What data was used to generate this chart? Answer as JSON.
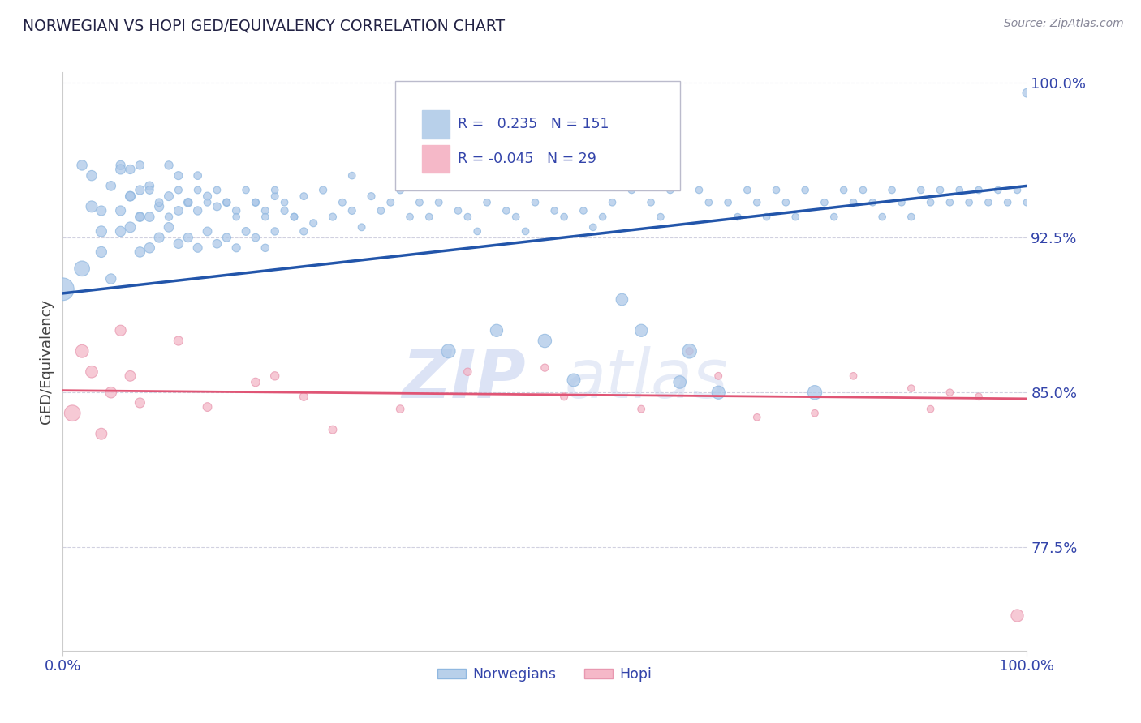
{
  "title": "NORWEGIAN VS HOPI GED/EQUIVALENCY CORRELATION CHART",
  "source_text": "Source: ZipAtlas.com",
  "ylabel": "GED/Equivalency",
  "r_norwegian": 0.235,
  "n_norwegian": 151,
  "r_hopi": -0.045,
  "n_hopi": 29,
  "xlim": [
    0.0,
    1.0
  ],
  "ylim": [
    0.725,
    1.005
  ],
  "yticks": [
    0.775,
    0.85,
    0.925,
    1.0
  ],
  "ytick_labels": [
    "77.5%",
    "85.0%",
    "92.5%",
    "100.0%"
  ],
  "xtick_labels": [
    "0.0%",
    "100.0%"
  ],
  "xticks": [
    0.0,
    1.0
  ],
  "norwegian_color": "#adc8e8",
  "norwegian_edge_color": "#90b8e0",
  "hopi_color": "#f4b8c8",
  "hopi_edge_color": "#e898b0",
  "norwegian_line_color": "#2255aa",
  "hopi_line_color": "#e05575",
  "legend_box_color_norwegian": "#b8d0ea",
  "legend_box_color_hopi": "#f5b8c8",
  "title_color": "#222244",
  "axis_label_color": "#334499",
  "tick_label_color": "#3344aa",
  "grid_color": "#ccccdd",
  "watermark_text": "ZIPatlas",
  "watermark_color": "#d0ddf0",
  "background_color": "#ffffff",
  "nor_line_start_y": 0.898,
  "nor_line_end_y": 0.95,
  "hop_line_start_y": 0.851,
  "hop_line_end_y": 0.847,
  "norwegian_x": [
    0.02,
    0.02,
    0.03,
    0.03,
    0.04,
    0.04,
    0.05,
    0.05,
    0.06,
    0.06,
    0.06,
    0.07,
    0.07,
    0.07,
    0.08,
    0.08,
    0.08,
    0.08,
    0.09,
    0.09,
    0.09,
    0.1,
    0.1,
    0.11,
    0.11,
    0.11,
    0.12,
    0.12,
    0.12,
    0.13,
    0.13,
    0.14,
    0.14,
    0.14,
    0.15,
    0.15,
    0.16,
    0.16,
    0.17,
    0.17,
    0.18,
    0.18,
    0.19,
    0.2,
    0.2,
    0.21,
    0.21,
    0.22,
    0.22,
    0.23,
    0.24,
    0.25,
    0.25,
    0.26,
    0.27,
    0.28,
    0.29,
    0.3,
    0.3,
    0.31,
    0.32,
    0.33,
    0.34,
    0.35,
    0.36,
    0.37,
    0.38,
    0.39,
    0.4,
    0.41,
    0.42,
    0.43,
    0.44,
    0.45,
    0.46,
    0.47,
    0.48,
    0.49,
    0.5,
    0.51,
    0.52,
    0.53,
    0.54,
    0.55,
    0.56,
    0.57,
    0.58,
    0.59,
    0.6,
    0.61,
    0.62,
    0.63,
    0.64,
    0.65,
    0.66,
    0.67,
    0.68,
    0.69,
    0.7,
    0.71,
    0.72,
    0.73,
    0.74,
    0.75,
    0.76,
    0.77,
    0.78,
    0.79,
    0.8,
    0.81,
    0.82,
    0.83,
    0.84,
    0.85,
    0.86,
    0.87,
    0.88,
    0.89,
    0.9,
    0.91,
    0.92,
    0.93,
    0.94,
    0.95,
    0.96,
    0.97,
    0.98,
    0.99,
    1.0,
    1.0,
    0.04,
    0.06,
    0.07,
    0.08,
    0.09,
    0.1,
    0.11,
    0.12,
    0.13,
    0.14,
    0.15,
    0.16,
    0.17,
    0.18,
    0.19,
    0.2,
    0.21,
    0.22,
    0.23,
    0.24,
    0.0
  ],
  "norwegian_y": [
    0.91,
    0.96,
    0.94,
    0.955,
    0.918,
    0.938,
    0.905,
    0.95,
    0.928,
    0.938,
    0.96,
    0.93,
    0.945,
    0.958,
    0.918,
    0.935,
    0.948,
    0.96,
    0.92,
    0.935,
    0.95,
    0.925,
    0.94,
    0.93,
    0.945,
    0.96,
    0.922,
    0.938,
    0.955,
    0.925,
    0.942,
    0.92,
    0.938,
    0.955,
    0.928,
    0.945,
    0.922,
    0.94,
    0.925,
    0.942,
    0.92,
    0.938,
    0.928,
    0.925,
    0.942,
    0.92,
    0.938,
    0.928,
    0.945,
    0.938,
    0.935,
    0.928,
    0.945,
    0.932,
    0.948,
    0.935,
    0.942,
    0.938,
    0.955,
    0.93,
    0.945,
    0.938,
    0.942,
    0.948,
    0.935,
    0.942,
    0.935,
    0.942,
    0.87,
    0.938,
    0.935,
    0.928,
    0.942,
    0.88,
    0.938,
    0.935,
    0.928,
    0.942,
    0.875,
    0.938,
    0.935,
    0.856,
    0.938,
    0.93,
    0.935,
    0.942,
    0.895,
    0.948,
    0.88,
    0.942,
    0.935,
    0.948,
    0.855,
    0.87,
    0.948,
    0.942,
    0.85,
    0.942,
    0.935,
    0.948,
    0.942,
    0.935,
    0.948,
    0.942,
    0.935,
    0.948,
    0.85,
    0.942,
    0.935,
    0.948,
    0.942,
    0.948,
    0.942,
    0.935,
    0.948,
    0.942,
    0.935,
    0.948,
    0.942,
    0.948,
    0.942,
    0.948,
    0.942,
    0.948,
    0.942,
    0.948,
    0.942,
    0.948,
    0.942,
    0.995,
    0.928,
    0.958,
    0.945,
    0.935,
    0.948,
    0.942,
    0.935,
    0.948,
    0.942,
    0.948,
    0.942,
    0.948,
    0.942,
    0.935,
    0.948,
    0.942,
    0.935,
    0.948,
    0.942,
    0.935,
    0.9
  ],
  "hopi_x": [
    0.01,
    0.02,
    0.03,
    0.04,
    0.05,
    0.06,
    0.07,
    0.08,
    0.12,
    0.15,
    0.2,
    0.22,
    0.25,
    0.28,
    0.35,
    0.42,
    0.5,
    0.52,
    0.6,
    0.65,
    0.68,
    0.72,
    0.78,
    0.82,
    0.88,
    0.9,
    0.92,
    0.95,
    0.99
  ],
  "hopi_y": [
    0.84,
    0.87,
    0.86,
    0.83,
    0.85,
    0.88,
    0.858,
    0.845,
    0.875,
    0.843,
    0.855,
    0.858,
    0.848,
    0.832,
    0.842,
    0.86,
    0.862,
    0.848,
    0.842,
    0.87,
    0.858,
    0.838,
    0.84,
    0.858,
    0.852,
    0.842,
    0.85,
    0.848,
    0.742
  ],
  "norwegian_sizes": [
    180,
    80,
    100,
    80,
    90,
    75,
    80,
    70,
    80,
    75,
    65,
    85,
    75,
    65,
    80,
    70,
    65,
    55,
    80,
    70,
    60,
    75,
    65,
    70,
    62,
    55,
    68,
    60,
    52,
    65,
    58,
    62,
    55,
    48,
    60,
    52,
    58,
    50,
    55,
    48,
    52,
    46,
    50,
    48,
    44,
    46,
    42,
    45,
    40,
    42,
    42,
    44,
    40,
    42,
    44,
    42,
    40,
    42,
    38,
    40,
    42,
    40,
    40,
    40,
    38,
    40,
    38,
    40,
    150,
    38,
    38,
    38,
    38,
    120,
    38,
    38,
    38,
    38,
    140,
    38,
    38,
    130,
    38,
    38,
    38,
    38,
    110,
    38,
    120,
    38,
    38,
    38,
    125,
    160,
    38,
    38,
    135,
    38,
    38,
    38,
    38,
    38,
    38,
    38,
    38,
    38,
    155,
    38,
    38,
    38,
    38,
    38,
    38,
    38,
    38,
    38,
    38,
    38,
    38,
    38,
    38,
    38,
    38,
    38,
    38,
    38,
    38,
    38,
    38,
    60,
    90,
    75,
    65,
    55,
    50,
    48,
    45,
    42,
    40,
    40,
    40,
    40,
    38,
    38,
    38,
    38,
    38,
    38,
    38,
    38,
    400
  ],
  "hopi_sizes": [
    200,
    130,
    110,
    100,
    95,
    90,
    85,
    75,
    65,
    60,
    58,
    55,
    52,
    50,
    48,
    46,
    44,
    42,
    40,
    42,
    40,
    38,
    38,
    38,
    38,
    38,
    38,
    38,
    120
  ]
}
